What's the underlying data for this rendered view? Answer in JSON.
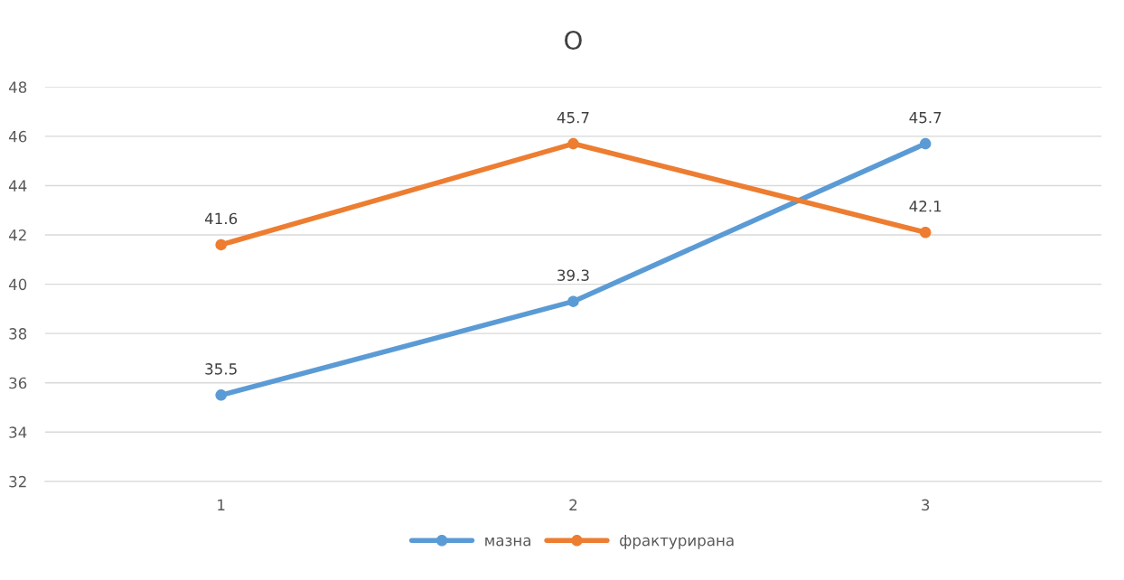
{
  "chart_data": {
    "type": "line",
    "title": "O",
    "categories": [
      "1",
      "2",
      "3"
    ],
    "series": [
      {
        "name": "мазна",
        "color": "#5b9bd5",
        "values": [
          35.5,
          39.3,
          45.7
        ]
      },
      {
        "name": "фрактурирана",
        "color": "#ed7d31",
        "values": [
          41.6,
          45.7,
          42.1
        ]
      }
    ],
    "ylim": [
      32,
      48
    ],
    "yticks": [
      32,
      34,
      36,
      38,
      40,
      42,
      44,
      46,
      48
    ],
    "grid": "y",
    "legend": "bottom",
    "marker": "circle",
    "line_style": "solid",
    "data_labels": true
  }
}
